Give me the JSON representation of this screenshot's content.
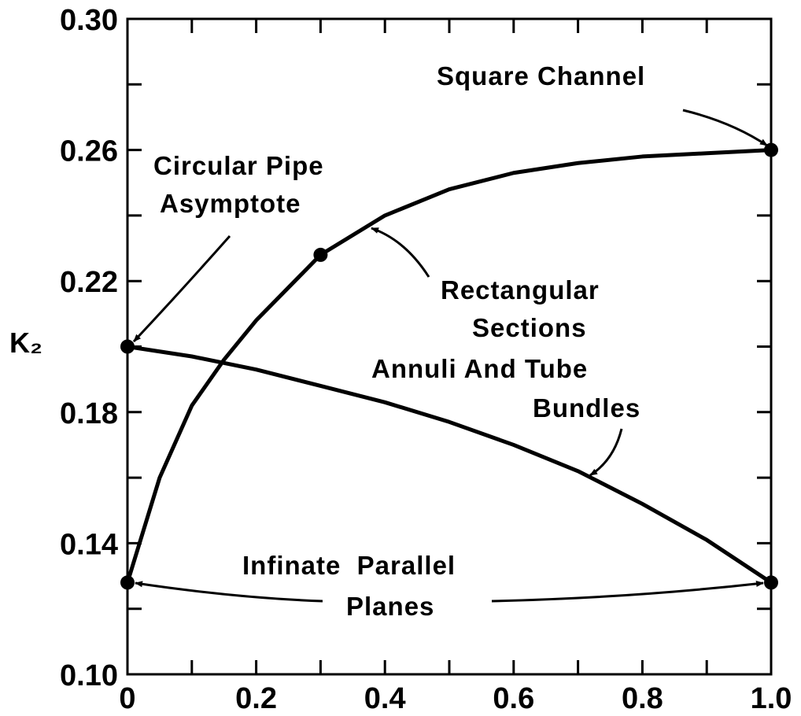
{
  "chart_data": {
    "type": "line",
    "ylabel": "K₂",
    "color": "#000000",
    "xlim": [
      0,
      1.0
    ],
    "ylim": [
      0.1,
      0.3
    ],
    "xticks": [
      0,
      0.2,
      0.4,
      0.6,
      0.8,
      {
        "value": 1.0,
        "label": "1.0"
      }
    ],
    "xminorticks": [
      0.1,
      0.3,
      0.5,
      0.7,
      0.9
    ],
    "yticks": [
      {
        "value": 0.1,
        "label": "0.10"
      },
      0.14,
      0.18,
      0.22,
      0.26,
      {
        "value": 0.3,
        "label": "0.30"
      }
    ],
    "yminorticks": [
      0.12,
      0.16,
      0.2,
      0.24,
      0.28
    ],
    "series": [
      {
        "x": [
          0,
          0.05,
          0.1,
          0.15,
          0.2,
          0.3,
          0.4,
          0.5,
          0.6,
          0.7,
          0.8,
          0.9,
          1.0
        ],
        "values": [
          0.128,
          0.16,
          0.182,
          0.196,
          0.208,
          0.228,
          0.24,
          0.248,
          0.253,
          0.256,
          0.258,
          0.259,
          0.26
        ]
      },
      {
        "x": [
          0,
          0.1,
          0.2,
          0.3,
          0.4,
          0.5,
          0.6,
          0.7,
          0.8,
          0.9,
          1.0
        ],
        "values": [
          0.2,
          0.197,
          0.193,
          0.188,
          0.183,
          0.177,
          0.17,
          0.162,
          0.152,
          0.141,
          0.128
        ]
      }
    ],
    "points": {
      "x": [
        0,
        0,
        0.3,
        1.0,
        1.0
      ],
      "y": [
        0.2,
        0.128,
        0.228,
        0.26,
        0.128
      ]
    },
    "annotations": [
      {
        "lines": [
          "Square Channel"
        ]
      },
      {
        "lines": [
          "Circular Pipe",
          "Asymptote"
        ]
      },
      {
        "lines": [
          "Rectangular",
          "Sections",
          "Annuli And Tube",
          "Bundles"
        ]
      },
      {
        "lines": [
          "Infinate  Parallel",
          "Planes"
        ]
      }
    ]
  }
}
